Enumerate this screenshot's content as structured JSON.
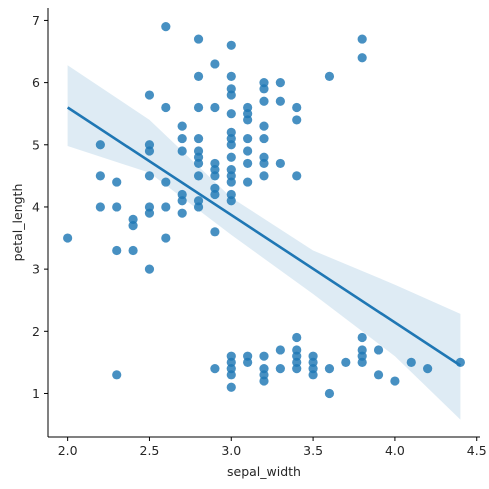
{
  "chart_data": {
    "type": "scatter",
    "title": "",
    "xlabel": "sepal_width",
    "ylabel": "petal_length",
    "xlim": [
      1.88,
      4.52
    ],
    "ylim": [
      0.3,
      7.2
    ],
    "xticks": [
      2.0,
      2.5,
      3.0,
      3.5,
      4.0,
      4.5
    ],
    "xtick_labels": [
      "2.0",
      "2.5",
      "3.0",
      "3.5",
      "4.0",
      "4.5"
    ],
    "yticks": [
      1,
      2,
      3,
      4,
      5,
      6,
      7
    ],
    "ytick_labels": [
      "1",
      "2",
      "3",
      "4",
      "5",
      "6",
      "7"
    ],
    "grid": false,
    "legend": "none",
    "point_color": "#1f77b4",
    "points": [
      [
        2.0,
        3.5
      ],
      [
        2.2,
        5.0
      ],
      [
        2.2,
        4.5
      ],
      [
        2.2,
        4.0
      ],
      [
        2.3,
        4.4
      ],
      [
        2.3,
        4.0
      ],
      [
        2.3,
        3.3
      ],
      [
        2.3,
        1.3
      ],
      [
        2.4,
        3.8
      ],
      [
        2.4,
        3.7
      ],
      [
        2.4,
        3.3
      ],
      [
        2.5,
        5.8
      ],
      [
        2.5,
        5.0
      ],
      [
        2.5,
        4.9
      ],
      [
        2.5,
        4.5
      ],
      [
        2.5,
        4.0
      ],
      [
        2.5,
        3.9
      ],
      [
        2.5,
        3.0
      ],
      [
        2.6,
        6.9
      ],
      [
        2.6,
        5.6
      ],
      [
        2.6,
        4.4
      ],
      [
        2.6,
        4.0
      ],
      [
        2.6,
        3.5
      ],
      [
        2.7,
        5.3
      ],
      [
        2.7,
        5.1
      ],
      [
        2.7,
        4.9
      ],
      [
        2.7,
        4.2
      ],
      [
        2.7,
        4.1
      ],
      [
        2.7,
        3.9
      ],
      [
        2.8,
        6.7
      ],
      [
        2.8,
        6.1
      ],
      [
        2.8,
        5.6
      ],
      [
        2.8,
        5.1
      ],
      [
        2.8,
        4.9
      ],
      [
        2.8,
        4.8
      ],
      [
        2.8,
        4.7
      ],
      [
        2.8,
        4.5
      ],
      [
        2.8,
        4.1
      ],
      [
        2.8,
        4.0
      ],
      [
        2.9,
        6.3
      ],
      [
        2.9,
        5.6
      ],
      [
        2.9,
        4.7
      ],
      [
        2.9,
        4.6
      ],
      [
        2.9,
        4.5
      ],
      [
        2.9,
        4.3
      ],
      [
        2.9,
        4.2
      ],
      [
        2.9,
        3.6
      ],
      [
        2.9,
        1.4
      ],
      [
        3.0,
        6.6
      ],
      [
        3.0,
        6.1
      ],
      [
        3.0,
        5.9
      ],
      [
        3.0,
        5.8
      ],
      [
        3.0,
        5.5
      ],
      [
        3.0,
        5.2
      ],
      [
        3.0,
        5.1
      ],
      [
        3.0,
        5.0
      ],
      [
        3.0,
        4.8
      ],
      [
        3.0,
        4.6
      ],
      [
        3.0,
        4.5
      ],
      [
        3.0,
        4.4
      ],
      [
        3.0,
        4.2
      ],
      [
        3.0,
        4.1
      ],
      [
        3.0,
        1.6
      ],
      [
        3.0,
        1.5
      ],
      [
        3.0,
        1.4
      ],
      [
        3.0,
        1.3
      ],
      [
        3.0,
        1.1
      ],
      [
        3.1,
        5.6
      ],
      [
        3.1,
        5.5
      ],
      [
        3.1,
        5.4
      ],
      [
        3.1,
        5.1
      ],
      [
        3.1,
        4.9
      ],
      [
        3.1,
        4.7
      ],
      [
        3.1,
        4.4
      ],
      [
        3.1,
        1.6
      ],
      [
        3.1,
        1.5
      ],
      [
        3.2,
        6.0
      ],
      [
        3.2,
        5.9
      ],
      [
        3.2,
        5.7
      ],
      [
        3.2,
        5.3
      ],
      [
        3.2,
        5.1
      ],
      [
        3.2,
        4.8
      ],
      [
        3.2,
        4.7
      ],
      [
        3.2,
        4.5
      ],
      [
        3.2,
        1.6
      ],
      [
        3.2,
        1.4
      ],
      [
        3.2,
        1.3
      ],
      [
        3.2,
        1.2
      ],
      [
        3.3,
        6.0
      ],
      [
        3.3,
        5.7
      ],
      [
        3.3,
        4.7
      ],
      [
        3.3,
        1.7
      ],
      [
        3.3,
        1.4
      ],
      [
        3.4,
        5.6
      ],
      [
        3.4,
        5.4
      ],
      [
        3.4,
        4.5
      ],
      [
        3.4,
        1.9
      ],
      [
        3.4,
        1.7
      ],
      [
        3.4,
        1.6
      ],
      [
        3.4,
        1.5
      ],
      [
        3.4,
        1.4
      ],
      [
        3.5,
        1.6
      ],
      [
        3.5,
        1.5
      ],
      [
        3.5,
        1.4
      ],
      [
        3.5,
        1.3
      ],
      [
        3.6,
        6.1
      ],
      [
        3.6,
        1.4
      ],
      [
        3.6,
        1.0
      ],
      [
        3.7,
        1.5
      ],
      [
        3.8,
        6.7
      ],
      [
        3.8,
        6.4
      ],
      [
        3.8,
        1.9
      ],
      [
        3.8,
        1.7
      ],
      [
        3.8,
        1.6
      ],
      [
        3.8,
        1.5
      ],
      [
        3.9,
        1.7
      ],
      [
        3.9,
        1.3
      ],
      [
        4.0,
        1.2
      ],
      [
        4.1,
        1.5
      ],
      [
        4.2,
        1.4
      ],
      [
        4.4,
        1.5
      ]
    ],
    "regression": {
      "x_range": [
        2.0,
        4.4
      ],
      "y_start": 5.6,
      "y_end": 1.45,
      "line_color": "#1f77b4",
      "ci_upper": [
        [
          2.0,
          6.28
        ],
        [
          2.5,
          5.4
        ],
        [
          3.0,
          4.15
        ],
        [
          3.5,
          3.3
        ],
        [
          4.0,
          2.75
        ],
        [
          4.4,
          2.28
        ]
      ],
      "ci_lower": [
        [
          4.4,
          0.58
        ],
        [
          4.0,
          1.6
        ],
        [
          3.5,
          2.6
        ],
        [
          3.0,
          3.55
        ],
        [
          2.5,
          4.55
        ],
        [
          2.0,
          4.98
        ]
      ]
    }
  }
}
